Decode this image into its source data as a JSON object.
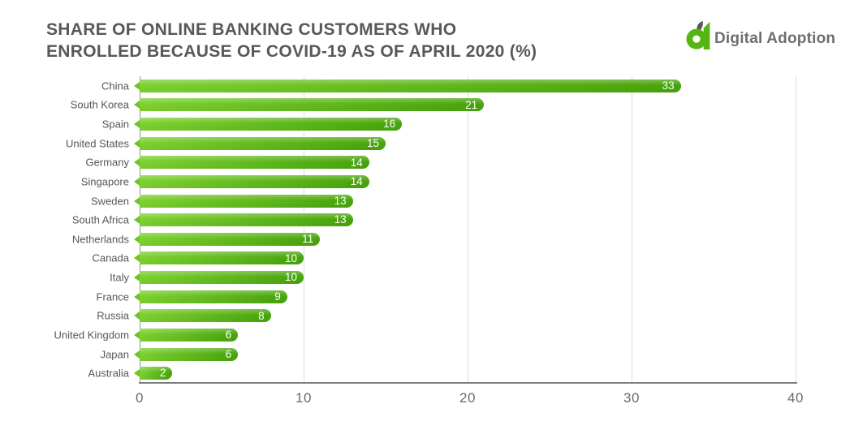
{
  "header": {
    "title_line1": "SHARE OF ONLINE BANKING CUSTOMERS WHO",
    "title_line2": "ENROLLED BECAUSE OF COVID-19 AS OF APRIL 2020 (%)"
  },
  "logo": {
    "brand": "Digital Adoption",
    "mark_icon": "digital-adoption-a-mark",
    "mark_color": "#55b514",
    "leaf_color": "#58595b",
    "text_color": "#6d6e71"
  },
  "chart_data": {
    "type": "bar",
    "orientation": "horizontal",
    "title": "SHARE OF ONLINE BANKING CUSTOMERS WHO ENROLLED BECAUSE OF COVID-19 AS OF APRIL 2020 (%)",
    "categories": [
      "China",
      "South Korea",
      "Spain",
      "United States",
      "Germany",
      "Singapore",
      "Sweden",
      "South Africa",
      "Netherlands",
      "Canada",
      "Italy",
      "France",
      "Russia",
      "United Kingdom",
      "Japan",
      "Australia"
    ],
    "values": [
      33,
      21,
      16,
      15,
      14,
      14,
      13,
      13,
      11,
      10,
      10,
      9,
      8,
      6,
      6,
      2
    ],
    "xlabel": "",
    "ylabel": "",
    "xlim": [
      0,
      40
    ],
    "x_ticks": [
      0,
      10,
      20,
      30,
      40
    ],
    "grid": "vertical gridlines at ticks",
    "legend": "none",
    "value_labels": "inside bar end, white",
    "bar_gradient_start": "#7dd130",
    "bar_gradient_end": "#47a40b",
    "pointer_color": "#6cc524",
    "gridline_color": "#dcdcdc",
    "axis_color": "#8f8f8f",
    "bottom_axis_color": "#7d7d7d",
    "tick_label_color": "#6a6a6a",
    "category_label_color": "#565656"
  }
}
